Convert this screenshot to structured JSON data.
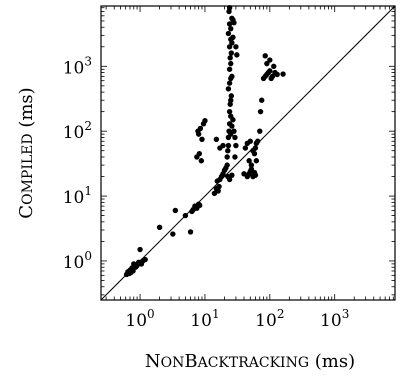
{
  "chart_data": {
    "type": "scatter",
    "title": "",
    "xlabel": {
      "cap1": "N",
      "small1": "ON",
      "cap2": "B",
      "small2": "ACKTRACKING",
      "unit": " (ms)"
    },
    "ylabel": {
      "cap1": "C",
      "small1": "OMPILED",
      "unit": " (ms)"
    },
    "xscale": "log",
    "yscale": "log",
    "xlim": [
      0.25,
      8500
    ],
    "ylim": [
      0.25,
      8500
    ],
    "tick_labels": [
      {
        "value": 1,
        "base": "10",
        "exp": "0"
      },
      {
        "value": 10,
        "base": "10",
        "exp": "1"
      },
      {
        "value": 100,
        "base": "10",
        "exp": "2"
      },
      {
        "value": 1000,
        "base": "10",
        "exp": "3"
      }
    ],
    "grid": false,
    "reference_line": "y = x",
    "point_color": "#000000",
    "points": [
      [
        0.62,
        0.62
      ],
      [
        0.65,
        0.68
      ],
      [
        0.68,
        0.64
      ],
      [
        0.7,
        0.72
      ],
      [
        0.72,
        0.66
      ],
      [
        0.75,
        0.78
      ],
      [
        0.78,
        0.7
      ],
      [
        0.8,
        0.9
      ],
      [
        0.85,
        0.8
      ],
      [
        0.9,
        0.85
      ],
      [
        0.95,
        0.95
      ],
      [
        1.0,
        1.5
      ],
      [
        1.05,
        0.9
      ],
      [
        1.1,
        1.0
      ],
      [
        1.2,
        1.05
      ],
      [
        2.0,
        3.3
      ],
      [
        3.2,
        2.6
      ],
      [
        3.5,
        6.0
      ],
      [
        5.0,
        5.0
      ],
      [
        6.0,
        2.8
      ],
      [
        6.3,
        5.8
      ],
      [
        6.6,
        6.2
      ],
      [
        7.0,
        7.0
      ],
      [
        7.5,
        6.5
      ],
      [
        8.0,
        7.5
      ],
      [
        8.3,
        7.2
      ],
      [
        7.8,
        100
      ],
      [
        8.0,
        90
      ],
      [
        8.5,
        110
      ],
      [
        7.5,
        40
      ],
      [
        8.2,
        45
      ],
      [
        8.8,
        35
      ],
      [
        9.0,
        75
      ],
      [
        9.5,
        130
      ],
      [
        10,
        145
      ],
      [
        14,
        11
      ],
      [
        15,
        13
      ],
      [
        15.5,
        17
      ],
      [
        16,
        12
      ],
      [
        16.5,
        14
      ],
      [
        17,
        18
      ],
      [
        18,
        20
      ],
      [
        19,
        22
      ],
      [
        20,
        25
      ],
      [
        15,
        75
      ],
      [
        17,
        55
      ],
      [
        19,
        60
      ],
      [
        21,
        27
      ],
      [
        22,
        30
      ],
      [
        22,
        40
      ],
      [
        22.5,
        50
      ],
      [
        23,
        60
      ],
      [
        23,
        80
      ],
      [
        23.5,
        100
      ],
      [
        24,
        130
      ],
      [
        24,
        200
      ],
      [
        24.5,
        260
      ],
      [
        25,
        300
      ],
      [
        25.5,
        350
      ],
      [
        23,
        450
      ],
      [
        24,
        550
      ],
      [
        25,
        650
      ],
      [
        26,
        700
      ],
      [
        24,
        900
      ],
      [
        25,
        1100
      ],
      [
        24.5,
        1350
      ],
      [
        25.5,
        1600
      ],
      [
        24,
        2000
      ],
      [
        26,
        2300
      ],
      [
        25,
        2600
      ],
      [
        27,
        2800
      ],
      [
        23,
        3200
      ],
      [
        25,
        3800
      ],
      [
        24,
        4500
      ],
      [
        26,
        5500
      ],
      [
        23.5,
        7000
      ],
      [
        24,
        8000
      ],
      [
        27,
        5200
      ],
      [
        28,
        4700
      ],
      [
        22.5,
        20
      ],
      [
        24,
        18
      ],
      [
        26,
        21
      ],
      [
        25,
        90
      ],
      [
        26,
        120
      ],
      [
        27,
        150
      ],
      [
        25,
        170
      ],
      [
        28,
        100
      ],
      [
        29,
        80
      ],
      [
        30,
        60
      ],
      [
        29,
        40
      ],
      [
        30,
        2000
      ],
      [
        31,
        1500
      ],
      [
        40,
        22
      ],
      [
        45,
        20
      ],
      [
        48,
        22
      ],
      [
        50,
        24
      ],
      [
        52,
        26
      ],
      [
        55,
        20
      ],
      [
        58,
        23
      ],
      [
        60,
        21
      ],
      [
        42,
        55
      ],
      [
        45,
        65
      ],
      [
        50,
        70
      ],
      [
        55,
        50
      ],
      [
        58,
        45
      ],
      [
        60,
        55
      ],
      [
        62,
        65
      ],
      [
        65,
        70
      ],
      [
        62,
        35
      ],
      [
        48,
        35
      ],
      [
        52,
        30
      ],
      [
        70,
        100
      ],
      [
        72,
        200
      ],
      [
        75,
        300
      ],
      [
        80,
        650
      ],
      [
        85,
        700
      ],
      [
        90,
        750
      ],
      [
        95,
        800
      ],
      [
        100,
        850
      ],
      [
        105,
        650
      ],
      [
        110,
        700
      ],
      [
        120,
        800
      ],
      [
        130,
        750
      ],
      [
        90,
        1100
      ],
      [
        100,
        1250
      ],
      [
        85,
        1450
      ],
      [
        160,
        760
      ],
      [
        115,
        1000
      ]
    ]
  }
}
